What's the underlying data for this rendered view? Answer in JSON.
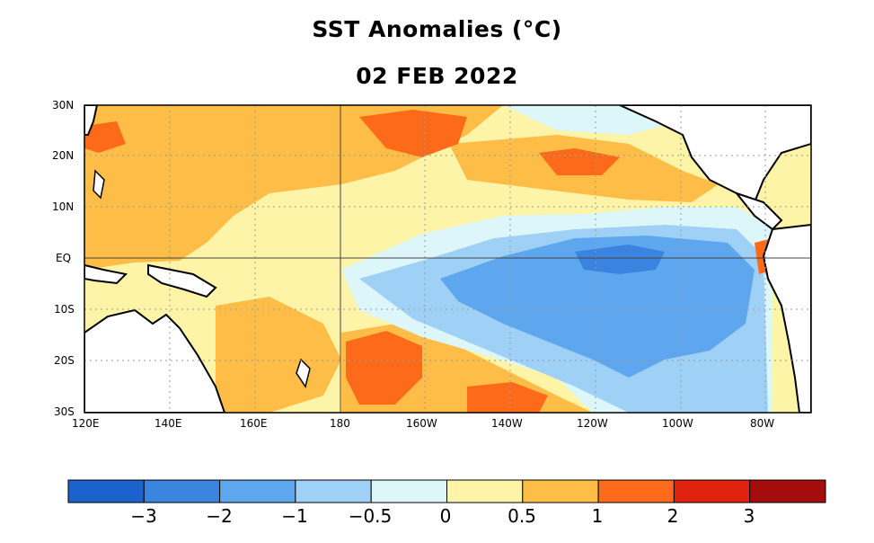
{
  "title": "SST Anomalies (°C)",
  "date": "02 FEB 2022",
  "lat_labels": [
    "30N",
    "20N",
    "10N",
    "EQ",
    "10S",
    "20S",
    "30S"
  ],
  "lon_labels": [
    "120E",
    "140E",
    "160E",
    "180",
    "160W",
    "140W",
    "120W",
    "100W",
    "80W"
  ],
  "colorbar": {
    "colors": [
      "#1c62cc",
      "#3a84e0",
      "#5ea6ee",
      "#9fd0f6",
      "#dcf6fa",
      "#fef4a8",
      "#fdbd46",
      "#fd6a1a",
      "#e0220e",
      "#a50c0c"
    ],
    "labels": [
      "−3",
      "−2",
      "−1",
      "−0.5",
      "0",
      "0.5",
      "1",
      "2",
      "3"
    ]
  },
  "colors": {
    "land": "#ffffff",
    "coast": "#000000",
    "grid": "#9a9a9a"
  }
}
